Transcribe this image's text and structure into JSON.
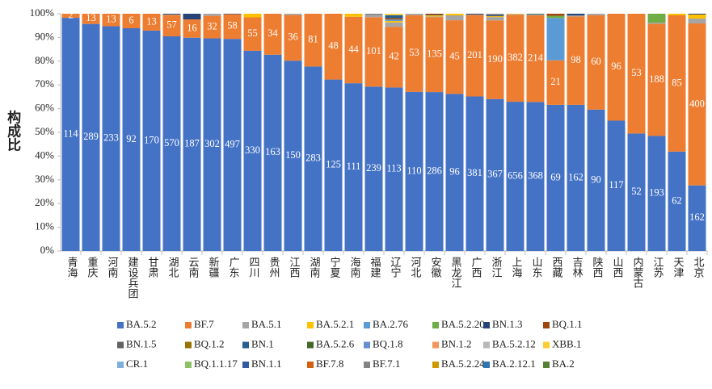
{
  "chart_data": {
    "type": "stacked_percent",
    "y_label": "构成比",
    "categories": [
      "青海",
      "重庆",
      "河南",
      "建设兵团",
      "甘肃",
      "湖北",
      "云南",
      "新疆",
      "广东",
      "四川",
      "贵州",
      "江西",
      "湖南",
      "宁夏",
      "海南",
      "福建",
      "辽宁",
      "河北",
      "安徽",
      "黑龙江",
      "广西",
      "浙江",
      "上海",
      "山东",
      "西藏",
      "吉林",
      "陕西",
      "山西",
      "内蒙古",
      "江苏",
      "天津",
      "北京"
    ],
    "ylim": [
      0,
      100
    ],
    "yticks": [
      {
        "value": 0,
        "label": "0%"
      },
      {
        "value": 10,
        "label": "10%"
      },
      {
        "value": 20,
        "label": "20%"
      },
      {
        "value": 30,
        "label": "30%"
      },
      {
        "value": 40,
        "label": "40%"
      },
      {
        "value": 50,
        "label": "50%"
      },
      {
        "value": 60,
        "label": "60%"
      },
      {
        "value": 70,
        "label": "70%"
      },
      {
        "value": 80,
        "label": "80%"
      },
      {
        "value": 90,
        "label": "90%"
      },
      {
        "value": 100,
        "label": "100%"
      }
    ],
    "series": [
      {
        "name": "BA.5.2",
        "color": "#4472c4",
        "labels": true,
        "values": [
          114,
          289,
          233,
          92,
          170,
          570,
          187,
          302,
          497,
          330,
          163,
          150,
          283,
          125,
          111,
          239,
          113,
          110,
          286,
          96,
          381,
          367,
          656,
          368,
          69,
          162,
          90,
          117,
          52,
          193,
          62,
          162
        ]
      },
      {
        "name": "BF.7",
        "color": "#ed7d31",
        "labels": true,
        "values": [
          2,
          13,
          13,
          6,
          13,
          57,
          16,
          32,
          58,
          55,
          34,
          36,
          81,
          48,
          44,
          101,
          42,
          53,
          135,
          45,
          201,
          190,
          382,
          214,
          21,
          98,
          60,
          96,
          53,
          188,
          85,
          400
        ]
      },
      {
        "name": "BA.5.1",
        "color": "#a5a5a5",
        "values": [
          0,
          0,
          0,
          0,
          0,
          1,
          0,
          3,
          0,
          0,
          0,
          1,
          0,
          0,
          0,
          3,
          3,
          1,
          1,
          3,
          1,
          8,
          3,
          2,
          0,
          1,
          1,
          0,
          0,
          2,
          0,
          12
        ]
      },
      {
        "name": "BA.5.2.1",
        "color": "#ffc000",
        "values": [
          0,
          0,
          0,
          0,
          0,
          0,
          0,
          0,
          0,
          6,
          0,
          0,
          0,
          0,
          2,
          0,
          1,
          0,
          2,
          1,
          0,
          2,
          2,
          0,
          0,
          0,
          0,
          0,
          0,
          0,
          1,
          10
        ]
      },
      {
        "name": "BA.2.76",
        "color": "#5b9bd5",
        "values": [
          0,
          0,
          0,
          0,
          0,
          0,
          0,
          0,
          0,
          0,
          0,
          0,
          0,
          0,
          0,
          0,
          1,
          0,
          0,
          0,
          0,
          0,
          0,
          0,
          20,
          0,
          0,
          0,
          0,
          0,
          0,
          0
        ]
      },
      {
        "name": "BA.5.2.20",
        "color": "#70ad47",
        "values": [
          0,
          0,
          0,
          0,
          0,
          0,
          0,
          0,
          0,
          0,
          0,
          0,
          0,
          0,
          0,
          0,
          0,
          0,
          0,
          0,
          0,
          0,
          0,
          1,
          1,
          0,
          0,
          0,
          0,
          15,
          0,
          0
        ]
      },
      {
        "name": "BN.1.3",
        "color": "#264478",
        "values": [
          0,
          0,
          0,
          0,
          0,
          2,
          5,
          0,
          1,
          0,
          0,
          0,
          0,
          0,
          0,
          0,
          0,
          0,
          1,
          0,
          2,
          2,
          0,
          1,
          0,
          2,
          0,
          0,
          0,
          0,
          0,
          2
        ]
      },
      {
        "name": "BQ.1.1",
        "color": "#9e480e",
        "values": [
          0,
          0,
          0,
          0,
          0,
          0,
          0,
          0,
          0,
          0,
          0,
          0,
          0,
          0,
          0,
          0,
          1,
          0,
          2,
          0,
          0,
          0,
          0,
          0,
          1,
          0,
          0,
          0,
          0,
          0,
          0,
          0
        ]
      },
      {
        "name": "BN.1.5",
        "color": "#636363",
        "values": [
          0,
          0,
          0,
          0,
          0,
          0,
          0,
          0,
          0,
          0,
          0,
          0,
          0,
          0,
          0,
          0,
          0,
          0,
          0,
          0,
          0,
          0,
          0,
          0,
          0,
          0,
          0,
          0,
          0,
          0,
          0,
          0
        ]
      },
      {
        "name": "BQ.1.2",
        "color": "#997300",
        "values": [
          0,
          0,
          0,
          0,
          0,
          0,
          0,
          0,
          0,
          0,
          0,
          0,
          0,
          0,
          0,
          0,
          0,
          0,
          0,
          0,
          0,
          0,
          0,
          0,
          0,
          0,
          0,
          0,
          0,
          0,
          0,
          0
        ]
      },
      {
        "name": "BN.1",
        "color": "#255e91",
        "values": [
          0,
          0,
          0,
          0,
          0,
          0,
          0,
          0,
          0,
          0,
          0,
          0,
          0,
          0,
          0,
          0,
          2,
          0,
          0,
          0,
          0,
          0,
          0,
          0,
          0,
          0,
          0,
          0,
          0,
          0,
          0,
          0
        ]
      },
      {
        "name": "BA.5.2.6",
        "color": "#43682b",
        "values": [
          0,
          0,
          0,
          0,
          0,
          0,
          0,
          0,
          0,
          0,
          0,
          0,
          0,
          0,
          0,
          0,
          0,
          0,
          0,
          0,
          0,
          0,
          0,
          0,
          0,
          0,
          0,
          0,
          0,
          0,
          0,
          0
        ]
      },
      {
        "name": "BQ.1.8",
        "color": "#698ed0",
        "values": [
          0,
          0,
          0,
          0,
          0,
          0,
          0,
          0,
          0,
          0,
          0,
          0,
          0,
          0,
          0,
          0,
          0,
          0,
          0,
          0,
          0,
          0,
          0,
          0,
          0,
          0,
          0,
          0,
          0,
          0,
          0,
          0
        ]
      },
      {
        "name": "BN.1.2",
        "color": "#f1975a",
        "values": [
          0,
          0,
          0,
          0,
          0,
          0,
          0,
          0,
          0,
          0,
          0,
          0,
          0,
          0,
          0,
          0,
          0,
          0,
          0,
          0,
          0,
          0,
          0,
          0,
          0,
          0,
          0,
          0,
          0,
          0,
          0,
          0
        ]
      },
      {
        "name": "BA.5.2.12",
        "color": "#b7b7b7",
        "values": [
          0,
          0,
          0,
          0,
          0,
          0,
          0,
          0,
          0,
          0,
          0,
          0,
          0,
          0,
          0,
          0,
          0,
          0,
          0,
          0,
          0,
          0,
          0,
          0,
          0,
          0,
          0,
          0,
          0,
          0,
          0,
          0
        ]
      },
      {
        "name": "XBB.1",
        "color": "#ffcd33",
        "values": [
          0,
          0,
          0,
          0,
          0,
          0,
          0,
          0,
          0,
          0,
          0,
          0,
          0,
          0,
          0,
          0,
          1,
          0,
          0,
          0,
          0,
          0,
          0,
          0,
          0,
          0,
          0,
          0,
          0,
          0,
          0,
          0
        ]
      },
      {
        "name": "CR.1",
        "color": "#7cafdd",
        "values": [
          0,
          0,
          0,
          0,
          0,
          0,
          0,
          0,
          0,
          0,
          0,
          0,
          0,
          0,
          0,
          0,
          0,
          0,
          0,
          0,
          0,
          0,
          0,
          0,
          0,
          0,
          0,
          0,
          0,
          0,
          0,
          0
        ]
      },
      {
        "name": "BQ.1.1.17",
        "color": "#8cc168",
        "values": [
          0,
          0,
          0,
          0,
          0,
          0,
          0,
          0,
          0,
          0,
          0,
          0,
          0,
          0,
          0,
          0,
          0,
          0,
          0,
          0,
          0,
          0,
          0,
          0,
          0,
          0,
          0,
          0,
          0,
          0,
          0,
          0
        ]
      },
      {
        "name": "BN.1.1",
        "color": "#335aa1",
        "values": [
          0,
          0,
          0,
          0,
          0,
          0,
          0,
          0,
          0,
          0,
          0,
          0,
          0,
          0,
          0,
          0,
          0,
          0,
          0,
          0,
          0,
          0,
          0,
          0,
          0,
          0,
          0,
          0,
          0,
          0,
          0,
          0
        ]
      },
      {
        "name": "BF.7.8",
        "color": "#d26012",
        "values": [
          0,
          0,
          0,
          0,
          0,
          0,
          0,
          0,
          0,
          0,
          0,
          0,
          0,
          0,
          0,
          0,
          0,
          0,
          0,
          0,
          0,
          0,
          0,
          0,
          0,
          0,
          0,
          0,
          0,
          0,
          0,
          0
        ]
      },
      {
        "name": "BF.7.1",
        "color": "#848484",
        "values": [
          0,
          0,
          0,
          0,
          0,
          0,
          0,
          0,
          0,
          0,
          0,
          0,
          0,
          0,
          0,
          2,
          0,
          0,
          0,
          0,
          0,
          4,
          0,
          0,
          0,
          0,
          0,
          0,
          0,
          0,
          0,
          0
        ]
      },
      {
        "name": "BA.5.2.24",
        "color": "#cc9a00",
        "values": [
          0,
          0,
          0,
          0,
          0,
          0,
          0,
          0,
          0,
          0,
          0,
          0,
          0,
          0,
          0,
          0,
          0,
          0,
          0,
          0,
          0,
          0,
          0,
          0,
          0,
          0,
          0,
          0,
          0,
          0,
          0,
          0
        ]
      },
      {
        "name": "BA.2.12.1",
        "color": "#2e75b6",
        "values": [
          0,
          0,
          0,
          0,
          0,
          0,
          0,
          0,
          0,
          0,
          0,
          0,
          0,
          0,
          0,
          0,
          0,
          0,
          0,
          0,
          0,
          0,
          0,
          0,
          0,
          0,
          0,
          0,
          0,
          0,
          0,
          0
        ]
      },
      {
        "name": "BA.2",
        "color": "#548235",
        "values": [
          0,
          0,
          0,
          0,
          0,
          0,
          0,
          0,
          0,
          0,
          0,
          0,
          0,
          0,
          0,
          0,
          0,
          0,
          0,
          0,
          0,
          0,
          0,
          0,
          0,
          0,
          0,
          0,
          0,
          0,
          0,
          0
        ]
      }
    ]
  }
}
